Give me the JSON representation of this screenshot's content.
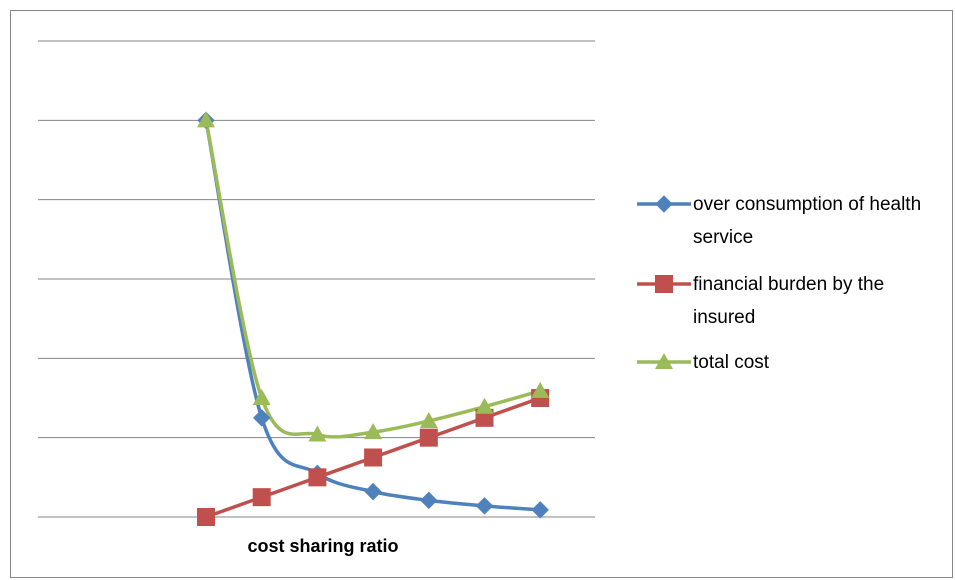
{
  "chart_data": {
    "type": "line",
    "x_label": "cost sharing ratio",
    "categories": [
      null,
      null,
      null,
      null,
      null,
      null,
      null
    ],
    "series": [
      {
        "name": "over consumption of health service",
        "color": "#4f81bd",
        "marker": "diamond",
        "values": [
          5.0,
          1.25,
          0.55,
          0.32,
          0.21,
          0.14,
          0.09
        ]
      },
      {
        "name": "financial burden by the insured",
        "color": "#c0504d",
        "marker": "square",
        "values": [
          0,
          0.25,
          0.5,
          0.75,
          1.0,
          1.25,
          1.5
        ]
      },
      {
        "name": "total cost",
        "color": "#9bbb59",
        "marker": "triangle",
        "values": [
          5.0,
          1.5,
          1.04,
          1.07,
          1.21,
          1.39,
          1.59
        ]
      }
    ],
    "smooth": true,
    "ylim": [
      0,
      6
    ],
    "yticks": [
      0,
      1,
      2,
      3,
      4,
      5,
      6
    ],
    "grid": true,
    "legend": "right"
  }
}
